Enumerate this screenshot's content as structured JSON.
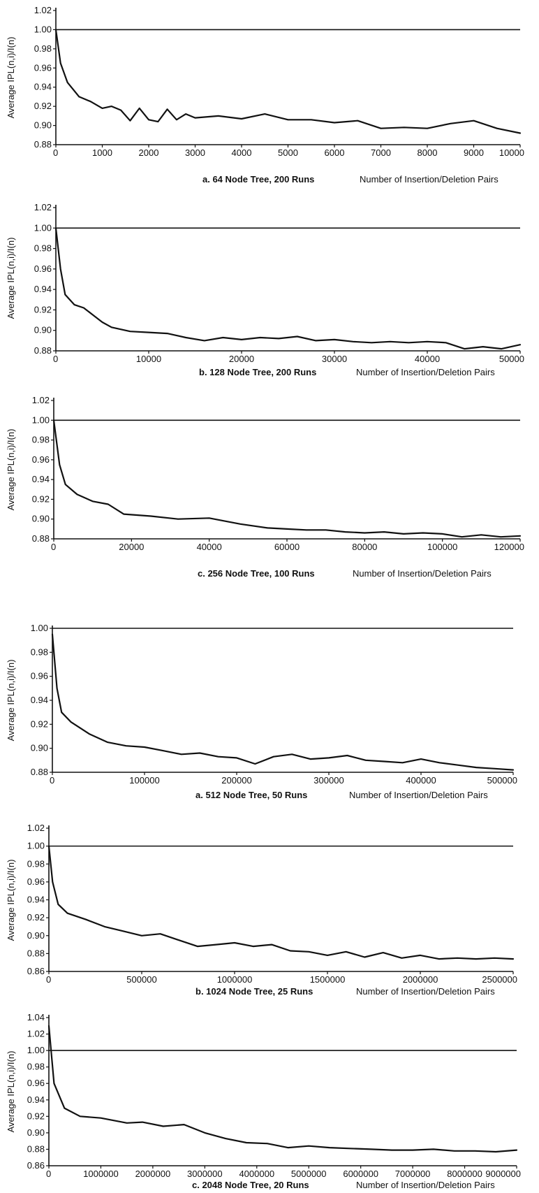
{
  "page": {
    "background": "#ffffff",
    "ink": "#111111"
  },
  "chart_data": [
    {
      "type": "line",
      "caption": "a.  64 Node Tree, 200 Runs",
      "xlabel": "Number of Insertion/Deletion Pairs",
      "ylabel": "Average IPL(n,i)/I(n)",
      "xlim": [
        0,
        10000
      ],
      "ylim": [
        0.88,
        1.02
      ],
      "xticks": [
        0,
        1000,
        2000,
        3000,
        4000,
        5000,
        6000,
        7000,
        8000,
        9000,
        10000
      ],
      "yticks": [
        "0.88",
        "0.90",
        "0.92",
        "0.94",
        "0.96",
        "0.98",
        "1.00",
        "1.02"
      ],
      "reference": 1.0,
      "series": [
        {
          "x": [
            0,
            100,
            250,
            500,
            750,
            1000,
            1200,
            1400,
            1600,
            1800,
            2000,
            2200,
            2400,
            2600,
            2800,
            3000,
            3500,
            4000,
            4500,
            5000,
            5500,
            6000,
            6500,
            7000,
            7500,
            8000,
            8500,
            9000,
            9500,
            10000
          ],
          "y": [
            1.0,
            0.965,
            0.945,
            0.93,
            0.925,
            0.918,
            0.92,
            0.916,
            0.905,
            0.918,
            0.906,
            0.904,
            0.917,
            0.906,
            0.912,
            0.908,
            0.91,
            0.907,
            0.912,
            0.906,
            0.906,
            0.903,
            0.905,
            0.897,
            0.898,
            0.897,
            0.902,
            0.905,
            0.897,
            0.892
          ]
        }
      ]
    },
    {
      "type": "line",
      "caption": "b.  128 Node Tree, 200 Runs",
      "xlabel": "Number of Insertion/Deletion Pairs",
      "ylabel": "Average IPL(n,i)/I(n)",
      "xlim": [
        0,
        50000
      ],
      "ylim": [
        0.88,
        1.02
      ],
      "xticks": [
        0,
        10000,
        20000,
        30000,
        40000,
        50000
      ],
      "yticks": [
        "0.88",
        "0.90",
        "0.92",
        "0.94",
        "0.96",
        "0.98",
        "1.00",
        "1.02"
      ],
      "reference": 1.0,
      "series": [
        {
          "x": [
            0,
            500,
            1000,
            2000,
            3000,
            4000,
            5000,
            6000,
            8000,
            10000,
            12000,
            14000,
            16000,
            18000,
            20000,
            22000,
            24000,
            26000,
            28000,
            30000,
            32000,
            34000,
            36000,
            38000,
            40000,
            42000,
            44000,
            46000,
            48000,
            50000
          ],
          "y": [
            1.0,
            0.96,
            0.935,
            0.925,
            0.922,
            0.915,
            0.908,
            0.903,
            0.899,
            0.898,
            0.897,
            0.893,
            0.89,
            0.893,
            0.891,
            0.893,
            0.892,
            0.894,
            0.89,
            0.891,
            0.889,
            0.888,
            0.889,
            0.888,
            0.889,
            0.888,
            0.882,
            0.884,
            0.882,
            0.886
          ]
        }
      ]
    },
    {
      "type": "line",
      "caption": "c.  256 Node Tree, 100 Runs",
      "xlabel": "Number of Insertion/Deletion Pairs",
      "ylabel": "Average IPL(n,i)/I(n)",
      "xlim": [
        0,
        120000
      ],
      "ylim": [
        0.88,
        1.02
      ],
      "xticks": [
        0,
        20000,
        40000,
        60000,
        80000,
        100000,
        120000
      ],
      "yticks": [
        "0.88",
        "0.90",
        "0.92",
        "0.94",
        "0.96",
        "0.98",
        "1.00",
        "1.02"
      ],
      "reference": 1.0,
      "series": [
        {
          "x": [
            0,
            1500,
            3000,
            6000,
            10000,
            14000,
            18000,
            25000,
            32000,
            40000,
            48000,
            55000,
            60000,
            65000,
            70000,
            75000,
            80000,
            85000,
            90000,
            95000,
            100000,
            105000,
            110000,
            115000,
            120000
          ],
          "y": [
            1.0,
            0.955,
            0.935,
            0.925,
            0.918,
            0.915,
            0.905,
            0.903,
            0.9,
            0.901,
            0.895,
            0.891,
            0.89,
            0.889,
            0.889,
            0.887,
            0.886,
            0.887,
            0.885,
            0.886,
            0.885,
            0.882,
            0.884,
            0.882,
            0.883
          ]
        }
      ]
    },
    {
      "type": "line",
      "caption": "a.  512 Node Tree, 50 Runs",
      "xlabel": "Number of Insertion/Deletion Pairs",
      "ylabel": "Average IPL(n,i)/I(n)",
      "xlim": [
        0,
        500000
      ],
      "ylim": [
        0.88,
        1.0
      ],
      "xticks": [
        0,
        100000,
        200000,
        300000,
        400000,
        500000
      ],
      "yticks": [
        "0.88",
        "0.90",
        "0.92",
        "0.94",
        "0.96",
        "0.98",
        "1.00"
      ],
      "reference": 1.0,
      "series": [
        {
          "x": [
            0,
            5000,
            10000,
            20000,
            40000,
            60000,
            80000,
            100000,
            120000,
            140000,
            160000,
            180000,
            200000,
            220000,
            240000,
            260000,
            280000,
            300000,
            320000,
            340000,
            360000,
            380000,
            400000,
            420000,
            440000,
            460000,
            480000,
            500000
          ],
          "y": [
            0.995,
            0.95,
            0.93,
            0.922,
            0.912,
            0.905,
            0.902,
            0.901,
            0.898,
            0.895,
            0.896,
            0.893,
            0.892,
            0.887,
            0.893,
            0.895,
            0.891,
            0.892,
            0.894,
            0.89,
            0.889,
            0.888,
            0.891,
            0.888,
            0.886,
            0.884,
            0.883,
            0.882
          ]
        }
      ]
    },
    {
      "type": "line",
      "caption": "b.  1024 Node Tree, 25 Runs",
      "xlabel": "Number of Insertion/Deletion Pairs",
      "ylabel": "Average IPL(n,i)/I(n)",
      "xlim": [
        0,
        2500000
      ],
      "ylim": [
        0.86,
        1.02
      ],
      "xticks": [
        0,
        500000,
        1000000,
        1500000,
        2000000,
        2500000
      ],
      "yticks": [
        "0.86",
        "0.88",
        "0.90",
        "0.92",
        "0.94",
        "0.96",
        "0.98",
        "1.00",
        "1.02"
      ],
      "reference": 1.0,
      "series": [
        {
          "x": [
            0,
            20000,
            50000,
            100000,
            200000,
            300000,
            400000,
            500000,
            600000,
            700000,
            800000,
            900000,
            1000000,
            1100000,
            1200000,
            1300000,
            1400000,
            1500000,
            1600000,
            1700000,
            1800000,
            1900000,
            2000000,
            2100000,
            2200000,
            2300000,
            2400000,
            2500000
          ],
          "y": [
            1.0,
            0.96,
            0.935,
            0.925,
            0.918,
            0.91,
            0.905,
            0.9,
            0.902,
            0.895,
            0.888,
            0.89,
            0.892,
            0.888,
            0.89,
            0.883,
            0.882,
            0.878,
            0.882,
            0.876,
            0.881,
            0.875,
            0.878,
            0.874,
            0.875,
            0.874,
            0.875,
            0.874
          ]
        }
      ]
    },
    {
      "type": "line",
      "caption": "c.  2048 Node Tree, 20 Runs",
      "xlabel": "Number of Insertion/Deletion Pairs",
      "ylabel": "Average IPL(n,i)/I(n)",
      "xlim": [
        0,
        9000000
      ],
      "ylim": [
        0.86,
        1.04
      ],
      "xticks": [
        0,
        1000000,
        2000000,
        3000000,
        4000000,
        5000000,
        6000000,
        7000000,
        8000000,
        9000000
      ],
      "yticks": [
        "0.86",
        "0.88",
        "0.90",
        "0.92",
        "0.94",
        "0.96",
        "0.98",
        "1.00",
        "1.02",
        "1.04"
      ],
      "reference": 1.0,
      "series": [
        {
          "x": [
            0,
            100000,
            300000,
            600000,
            1000000,
            1500000,
            1800000,
            2200000,
            2600000,
            3000000,
            3400000,
            3800000,
            4200000,
            4600000,
            5000000,
            5400000,
            5800000,
            6200000,
            6600000,
            7000000,
            7400000,
            7800000,
            8200000,
            8600000,
            9000000
          ],
          "y": [
            1.03,
            0.96,
            0.93,
            0.92,
            0.918,
            0.912,
            0.913,
            0.908,
            0.91,
            0.9,
            0.893,
            0.888,
            0.887,
            0.882,
            0.884,
            0.882,
            0.881,
            0.88,
            0.879,
            0.879,
            0.88,
            0.878,
            0.878,
            0.877,
            0.879
          ]
        }
      ]
    }
  ]
}
